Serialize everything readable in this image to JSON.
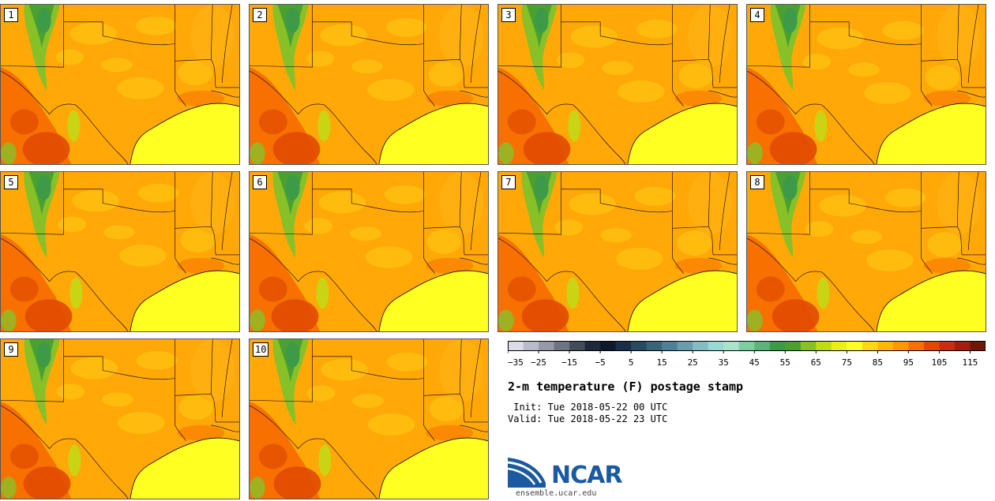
{
  "members": [
    "1",
    "2",
    "3",
    "4",
    "5",
    "6",
    "7",
    "8",
    "9",
    "10"
  ],
  "colorbar": {
    "colors": [
      "#dcdce6",
      "#b9bcc8",
      "#969aa8",
      "#6e7482",
      "#444c5a",
      "#1e2838",
      "#0e1a2c",
      "#1a2e48",
      "#2a4a62",
      "#3c6478",
      "#508098",
      "#6a9cae",
      "#84bcc4",
      "#9ad8d2",
      "#a8e4cc",
      "#7cd0a0",
      "#5cb47c",
      "#3c9a48",
      "#4aa030",
      "#88c028",
      "#c0dc18",
      "#eaf016",
      "#ffff22",
      "#ffd812",
      "#ffb808",
      "#ff9800",
      "#f87000",
      "#e04a00",
      "#c43010",
      "#a02010",
      "#701808"
    ],
    "tick_labels": [
      "−35",
      "−25",
      "−15",
      "−5",
      "5",
      "15",
      "25",
      "35",
      "45",
      "55",
      "65",
      "75",
      "85",
      "95",
      "105",
      "115"
    ]
  },
  "title": "2-m temperature (F) postage stamp",
  "init": " Init: Tue 2018-05-22 00 UTC",
  "valid": "Valid: Tue 2018-05-22 23 UTC",
  "logo": {
    "word": "NCAR",
    "url": "ensemble.ucar.edu",
    "brand_color": "#1a5aa0"
  }
}
